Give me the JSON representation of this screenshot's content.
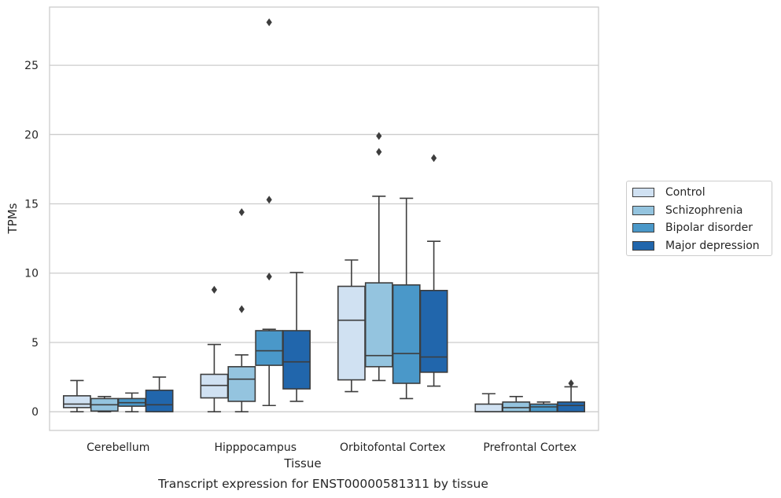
{
  "chart_data": {
    "type": "box",
    "title": "Transcript expression for ENST00000581311 by tissue",
    "xlabel": "Tissue",
    "ylabel": "TPMs",
    "ylim": [
      -1.35,
      29.2
    ],
    "yticks": [
      0,
      5,
      10,
      15,
      20,
      25
    ],
    "grid": true,
    "legend_position": "right",
    "categories": [
      "Cerebellum",
      "Hipppocampus",
      "Orbitofontal Cortex",
      "Prefrontal Cortex"
    ],
    "series": [
      {
        "name": "Control",
        "color": "#d0e1f2",
        "boxes": [
          {
            "whisker_low": 0.0,
            "q1": 0.3,
            "median": 0.55,
            "q3": 1.15,
            "whisker_high": 2.25,
            "outliers": []
          },
          {
            "whisker_low": 0.0,
            "q1": 1.0,
            "median": 1.9,
            "q3": 2.7,
            "whisker_high": 4.85,
            "outliers": [
              8.8
            ]
          },
          {
            "whisker_low": 1.45,
            "q1": 2.3,
            "median": 6.6,
            "q3": 9.05,
            "whisker_high": 10.95,
            "outliers": []
          },
          {
            "whisker_low": 0.0,
            "q1": 0.0,
            "median": 0.0,
            "q3": 0.55,
            "whisker_high": 1.3,
            "outliers": []
          }
        ]
      },
      {
        "name": "Schizophrenia",
        "color": "#94c4df",
        "boxes": [
          {
            "whisker_low": 0.0,
            "q1": 0.05,
            "median": 0.5,
            "q3": 0.95,
            "whisker_high": 1.1,
            "outliers": []
          },
          {
            "whisker_low": 0.0,
            "q1": 0.75,
            "median": 2.35,
            "q3": 3.25,
            "whisker_high": 4.1,
            "outliers": [
              7.4,
              14.4
            ]
          },
          {
            "whisker_low": 2.25,
            "q1": 3.25,
            "median": 4.05,
            "q3": 9.3,
            "whisker_high": 15.55,
            "outliers": [
              18.75,
              19.9
            ]
          },
          {
            "whisker_low": 0.0,
            "q1": 0.0,
            "median": 0.3,
            "q3": 0.7,
            "whisker_high": 1.1,
            "outliers": []
          }
        ]
      },
      {
        "name": "Bipolar disorder",
        "color": "#4a98c9",
        "boxes": [
          {
            "whisker_low": 0.0,
            "q1": 0.4,
            "median": 0.65,
            "q3": 0.95,
            "whisker_high": 1.35,
            "outliers": []
          },
          {
            "whisker_low": 0.45,
            "q1": 3.35,
            "median": 4.4,
            "q3": 5.85,
            "whisker_high": 5.95,
            "outliers": [
              9.75,
              15.3,
              28.1
            ]
          },
          {
            "whisker_low": 0.95,
            "q1": 2.05,
            "median": 4.2,
            "q3": 9.15,
            "whisker_high": 15.4,
            "outliers": []
          },
          {
            "whisker_low": 0.0,
            "q1": 0.0,
            "median": 0.35,
            "q3": 0.55,
            "whisker_high": 0.7,
            "outliers": []
          }
        ]
      },
      {
        "name": "Major depression",
        "color": "#2166ac",
        "boxes": [
          {
            "whisker_low": 0.0,
            "q1": 0.0,
            "median": 0.5,
            "q3": 1.55,
            "whisker_high": 2.5,
            "outliers": []
          },
          {
            "whisker_low": 0.75,
            "q1": 1.65,
            "median": 3.6,
            "q3": 5.85,
            "whisker_high": 10.05,
            "outliers": []
          },
          {
            "whisker_low": 1.85,
            "q1": 2.85,
            "median": 3.95,
            "q3": 8.75,
            "whisker_high": 12.3,
            "outliers": [
              18.3
            ]
          },
          {
            "whisker_low": 0.0,
            "q1": 0.0,
            "median": 0.45,
            "q3": 0.7,
            "whisker_high": 1.8,
            "outliers": [
              2.05
            ]
          }
        ]
      }
    ]
  }
}
